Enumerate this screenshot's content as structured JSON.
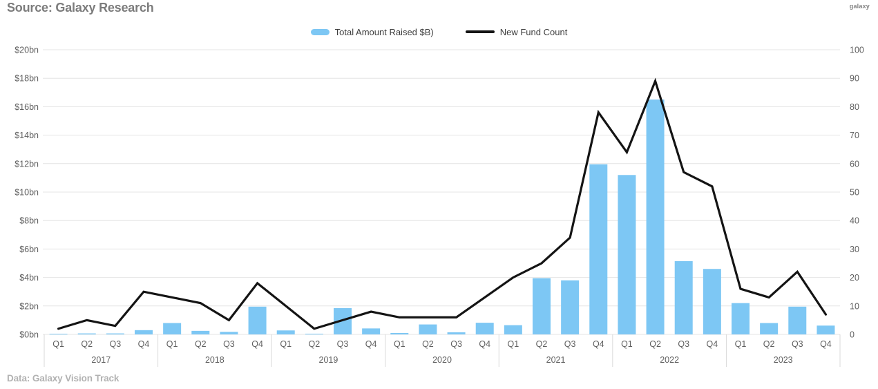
{
  "header": {
    "source": "Source: Galaxy Research",
    "logo": "galaxy"
  },
  "footer": {
    "data_source": "Data: Galaxy Vision Track"
  },
  "colors": {
    "background": "#ffffff",
    "bar": "#7dc7f4",
    "line": "#141414",
    "grid": "#e4e4e4",
    "separator": "#d9d9d9",
    "axis_text": "#5f5f5f",
    "title_text": "#7c7c7c",
    "footer_text": "#b2b2b2"
  },
  "chart_data": {
    "type": "bar",
    "subtype": "combo-bar-line-dual-axis",
    "title": "",
    "xlabel": "",
    "ylabel_left": "Total Amount Raised ($bn)",
    "ylabel_right": "New Fund Count",
    "grid": true,
    "legend_position": "top-center",
    "quarters": [
      "Q1",
      "Q2",
      "Q3",
      "Q4"
    ],
    "years": [
      "2017",
      "2018",
      "2019",
      "2020",
      "2021",
      "2022",
      "2023"
    ],
    "categories": [
      "2017 Q1",
      "2017 Q2",
      "2017 Q3",
      "2017 Q4",
      "2018 Q1",
      "2018 Q2",
      "2018 Q3",
      "2018 Q4",
      "2019 Q1",
      "2019 Q2",
      "2019 Q3",
      "2019 Q4",
      "2020 Q1",
      "2020 Q2",
      "2020 Q3",
      "2020 Q4",
      "2021 Q1",
      "2021 Q2",
      "2021 Q3",
      "2021 Q4",
      "2022 Q1",
      "2022 Q2",
      "2022 Q3",
      "2022 Q4",
      "2023 Q1",
      "2023 Q2",
      "2023 Q3",
      "2023 Q4"
    ],
    "series": [
      {
        "name": "Total Amount Raised $B)",
        "type": "bar",
        "axis": "left",
        "color": "#7dc7f4",
        "values": [
          0.03,
          0.07,
          0.07,
          0.3,
          0.8,
          0.25,
          0.18,
          1.95,
          0.28,
          0.05,
          1.85,
          0.42,
          0.1,
          0.7,
          0.15,
          0.82,
          0.65,
          3.95,
          3.8,
          11.95,
          11.2,
          16.5,
          5.15,
          4.6,
          2.2,
          0.8,
          1.95,
          0.62
        ]
      },
      {
        "name": "New Fund Count",
        "type": "line",
        "axis": "right",
        "color": "#141414",
        "values": [
          2,
          5,
          3,
          15,
          13,
          11,
          5,
          18,
          10,
          2,
          5,
          8,
          6,
          6,
          6,
          13,
          20,
          25,
          34,
          78,
          64,
          89,
          57,
          52,
          16,
          13,
          22,
          7
        ]
      }
    ],
    "left_axis": {
      "min": 0,
      "max": 20,
      "step": 2,
      "ticks": [
        "$20bn",
        "$18bn",
        "$16bn",
        "$14bn",
        "$12bn",
        "$10bn",
        "$8bn",
        "$6bn",
        "$4bn",
        "$2bn",
        "$0bn"
      ]
    },
    "right_axis": {
      "min": 0,
      "max": 100,
      "step": 10,
      "ticks": [
        "100",
        "90",
        "80",
        "70",
        "60",
        "50",
        "40",
        "30",
        "20",
        "10",
        "0"
      ]
    }
  }
}
